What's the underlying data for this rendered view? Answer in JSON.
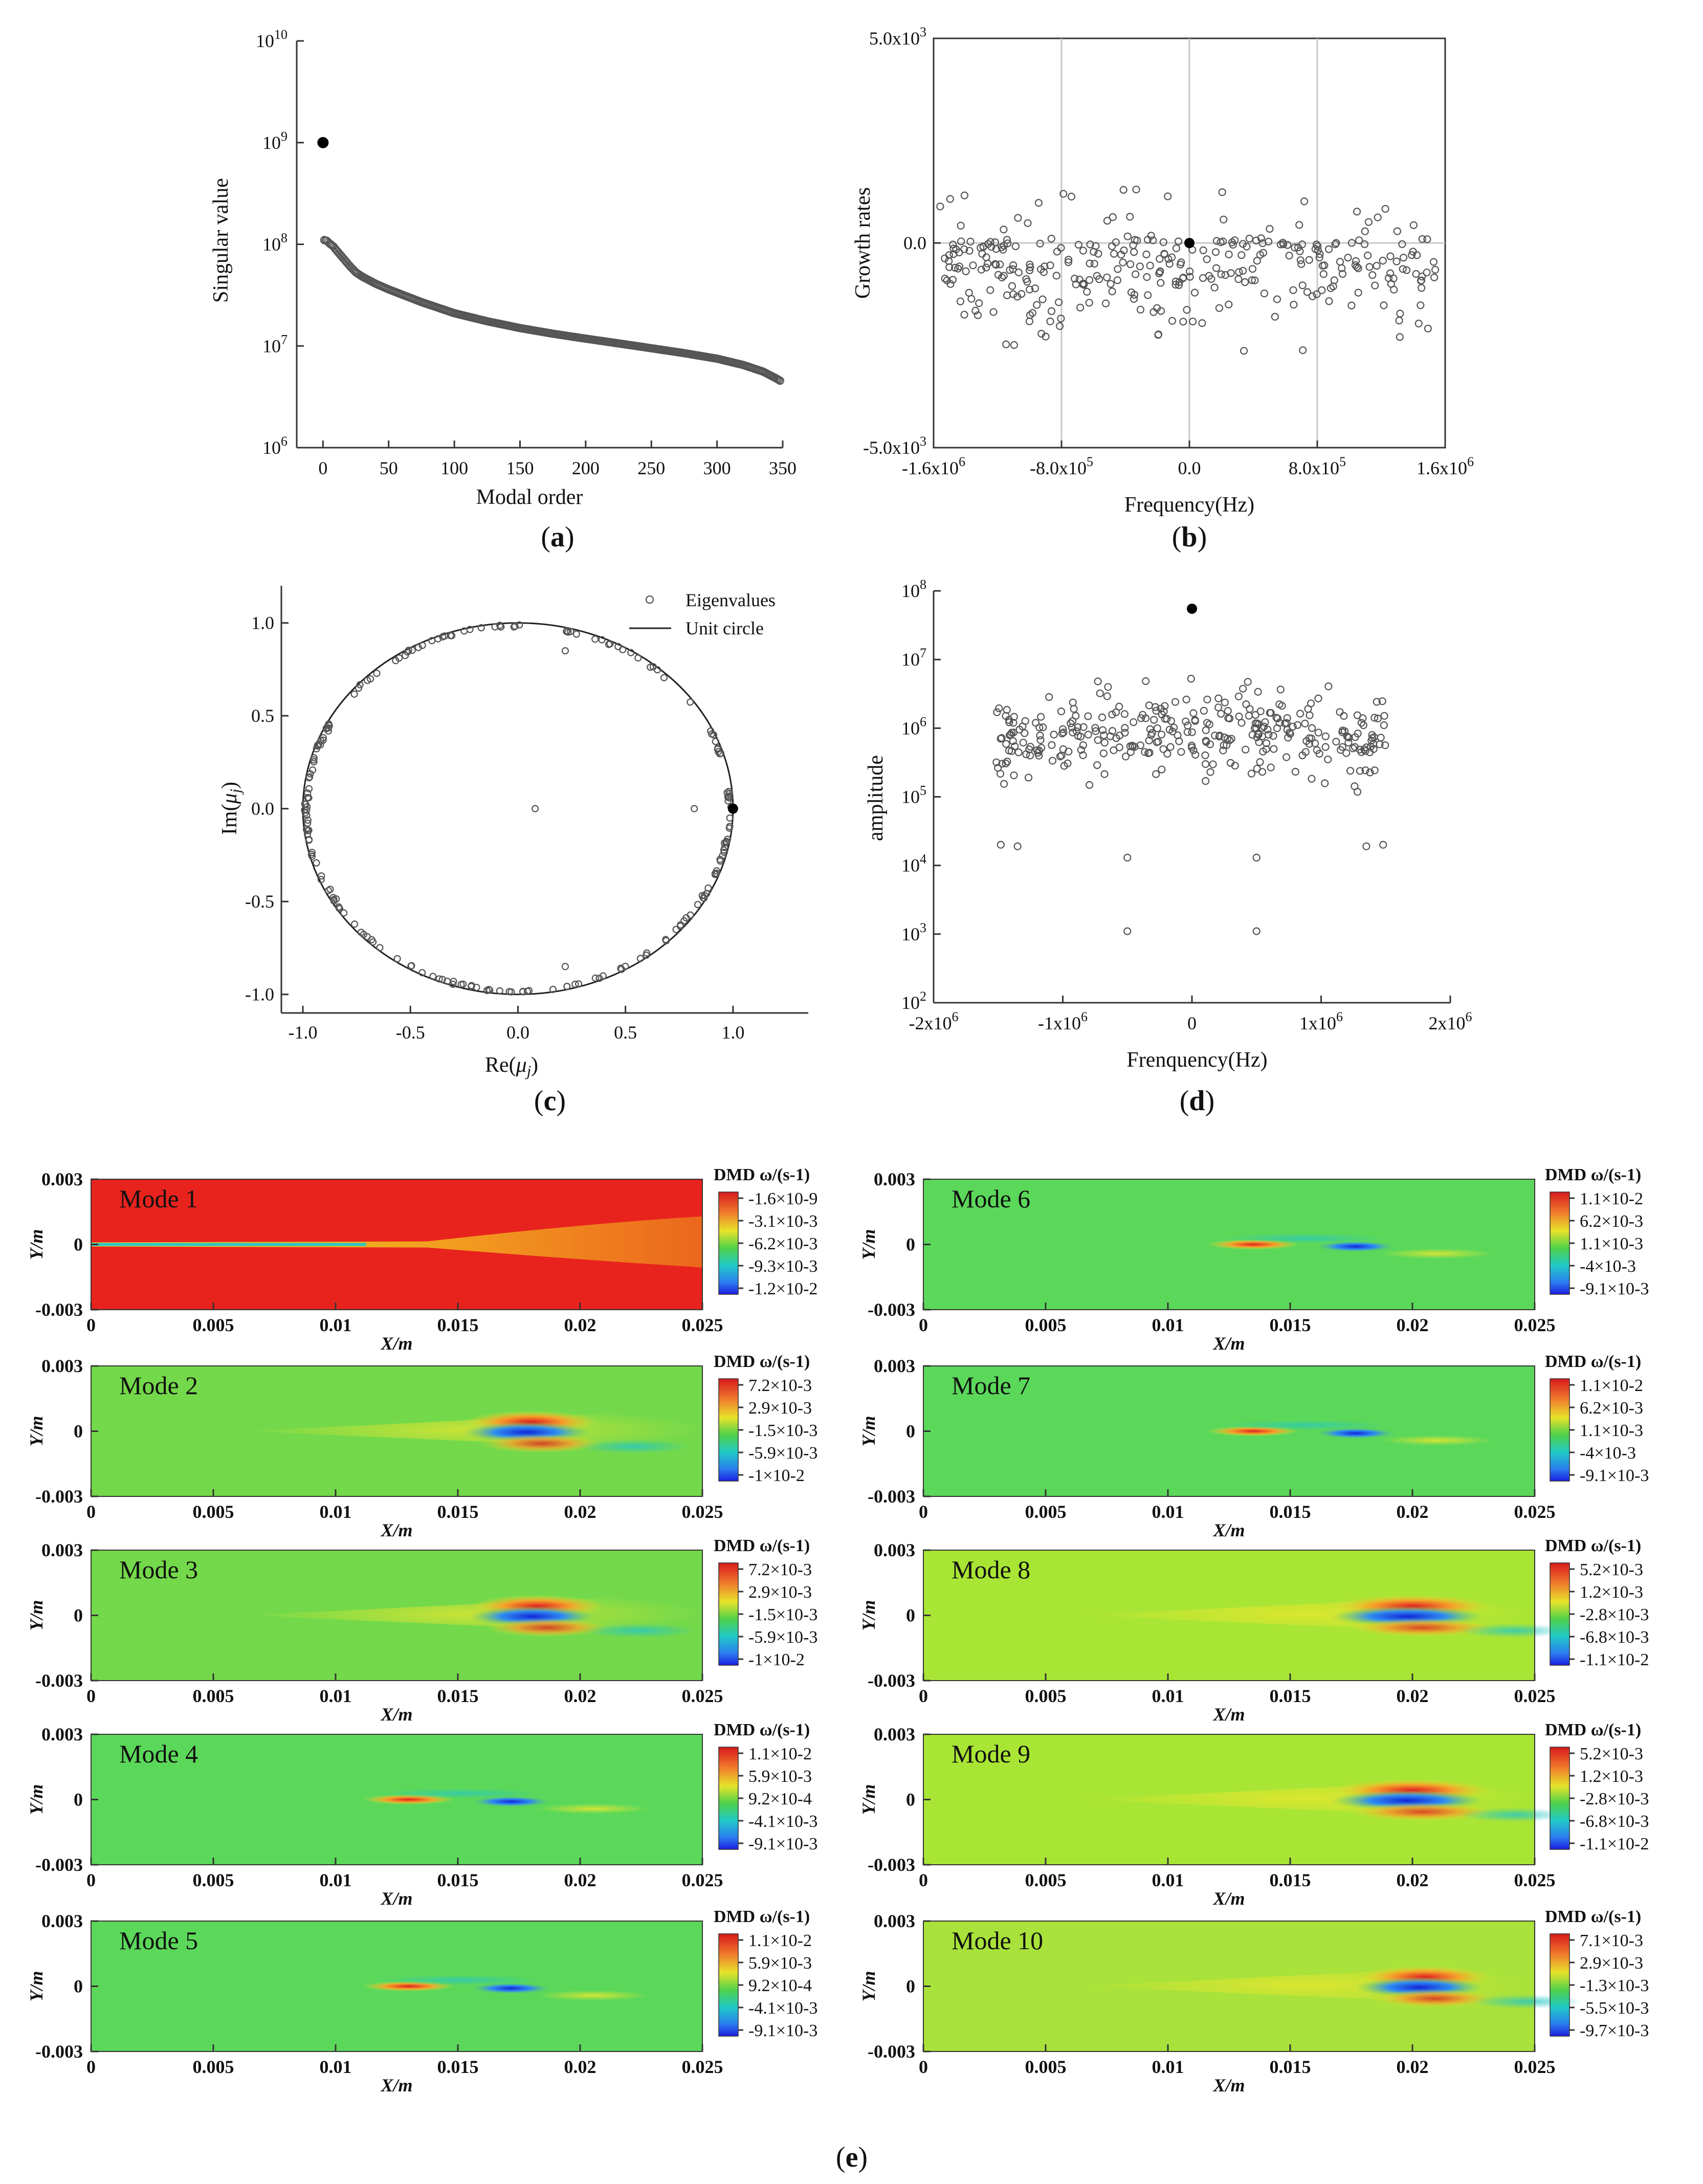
{
  "chart_data": [
    {
      "type": "scatter",
      "name": "a",
      "caption": "a",
      "xlabel": "Modal order",
      "ylabel": "Singular value",
      "xlim": [
        -20,
        350
      ],
      "ylim_log10": [
        6,
        10
      ],
      "x_ticks": [
        "0",
        "50",
        "100",
        "150",
        "200",
        "250",
        "300",
        "350"
      ],
      "y_ticks": [
        {
          "base": "10",
          "exp": "6"
        },
        {
          "base": "10",
          "exp": "7"
        },
        {
          "base": "10",
          "exp": "8"
        },
        {
          "base": "10",
          "exp": "9"
        },
        {
          "base": "10",
          "exp": "10"
        }
      ],
      "highlight": {
        "x": 0,
        "y": 1000000000
      },
      "series_points": [
        [
          1,
          110000000.0
        ],
        [
          3,
          108000000.0
        ],
        [
          5,
          102000000.0
        ],
        [
          8,
          95000000.0
        ],
        [
          10,
          88000000.0
        ],
        [
          15,
          74000000.0
        ],
        [
          20,
          62000000.0
        ],
        [
          25,
          53000000.0
        ],
        [
          30,
          48000000.0
        ],
        [
          40,
          41000000.0
        ],
        [
          50,
          36000000.0
        ],
        [
          75,
          27000000.0
        ],
        [
          100,
          21000000.0
        ],
        [
          125,
          17500000.0
        ],
        [
          150,
          15000000.0
        ],
        [
          175,
          13200000.0
        ],
        [
          200,
          11800000.0
        ],
        [
          225,
          10600000.0
        ],
        [
          250,
          9500000.0
        ],
        [
          275,
          8500000.0
        ],
        [
          300,
          7500000.0
        ],
        [
          320,
          6500000.0
        ],
        [
          335,
          5600000.0
        ],
        [
          345,
          4800000.0
        ],
        [
          350,
          4400000.0
        ]
      ]
    },
    {
      "type": "scatter",
      "name": "b",
      "caption": "b",
      "xlabel": "Frequency(Hz)",
      "ylabel": "Growth rates",
      "xlim": [
        -1600000,
        1600000
      ],
      "ylim": [
        -5000,
        5000
      ],
      "x_ticks": [
        {
          "mant": "-1.6x10",
          "exp": "6"
        },
        {
          "mant": "-8.0x10",
          "exp": "5"
        },
        {
          "mant": "0.0",
          "exp": ""
        },
        {
          "mant": "8.0x10",
          "exp": "5"
        },
        {
          "mant": "1.6x10",
          "exp": "6"
        }
      ],
      "y_ticks": [
        {
          "mant": "5.0x10",
          "exp": "3"
        },
        {
          "mant": "0.0",
          "exp": ""
        },
        {
          "mant": "-5.0x10",
          "exp": "3"
        }
      ],
      "highlight": {
        "x": 0,
        "y": 0
      },
      "n_points": 340
    },
    {
      "type": "scatter",
      "name": "c",
      "caption": "c",
      "xlabel": "Re(μj)",
      "ylabel": "Im(μj)",
      "xlim": [
        -1.1,
        1.35
      ],
      "ylim": [
        -1.1,
        1.2
      ],
      "x_ticks": [
        "-1.0",
        "-0.5",
        "0.0",
        "0.5",
        "1.0"
      ],
      "y_ticks": [
        "1.0",
        "0.5",
        "0.0",
        "-0.5",
        "-1.0"
      ],
      "legend": [
        "Eigenvalues",
        "Unit circle"
      ],
      "highlight": {
        "x": 1.0,
        "y": 0.0
      },
      "interior_points": [
        [
          0.08,
          0.0
        ],
        [
          0.82,
          0.0
        ],
        [
          0.22,
          0.85
        ],
        [
          0.22,
          -0.85
        ]
      ],
      "n_circle_points": 200
    },
    {
      "type": "scatter",
      "name": "d",
      "caption": "d",
      "xlabel": "Frenquency(Hz)",
      "ylabel": "amplitude",
      "xlim": [
        -2000000,
        2000000
      ],
      "ylim_log10": [
        2,
        8
      ],
      "x_ticks": [
        {
          "mant": "-2x10",
          "exp": "6"
        },
        {
          "mant": "-1x10",
          "exp": "6"
        },
        {
          "mant": "0",
          "exp": ""
        },
        {
          "mant": "1x10",
          "exp": "6"
        },
        {
          "mant": "2x10",
          "exp": "6"
        }
      ],
      "y_ticks": [
        {
          "base": "10",
          "exp": "2"
        },
        {
          "base": "10",
          "exp": "3"
        },
        {
          "base": "10",
          "exp": "4"
        },
        {
          "base": "10",
          "exp": "5"
        },
        {
          "base": "10",
          "exp": "6"
        },
        {
          "base": "10",
          "exp": "7"
        },
        {
          "base": "10",
          "exp": "8"
        }
      ],
      "highlight": {
        "x": 0,
        "y": 55000000
      },
      "extra_points": [
        [
          -1480000,
          20000
        ],
        [
          -1350000,
          19000
        ],
        [
          -500000,
          13000
        ],
        [
          500000,
          13000
        ],
        [
          -500000,
          1100
        ],
        [
          500000,
          1100
        ],
        [
          1350000,
          19000
        ],
        [
          1480000,
          20000
        ]
      ],
      "n_points": 330
    },
    {
      "type": "heatmap",
      "name": "e",
      "caption": "e",
      "xlabel": "X/m",
      "ylabel": "Y/m",
      "x_ticks": [
        "0",
        "0.005",
        "0.01",
        "0.015",
        "0.02",
        "0.025"
      ],
      "y_ticks": [
        "0.003",
        "0",
        "-0.003"
      ],
      "colorbar_title": "DMD ω/(s-1)",
      "modes": [
        {
          "label": "Mode 1",
          "levels": [
            "-1.6×10-9",
            "-3.1×10-3",
            "-6.2×10-3",
            "-9.3×10-3",
            "-1.2×10-2"
          ]
        },
        {
          "label": "Mode 2",
          "levels": [
            "7.2×10-3",
            "2.9×10-3",
            "-1.5×10-3",
            "-5.9×10-3",
            "-1×10-2"
          ]
        },
        {
          "label": "Mode 3",
          "levels": [
            "7.2×10-3",
            "2.9×10-3",
            "-1.5×10-3",
            "-5.9×10-3",
            "-1×10-2"
          ]
        },
        {
          "label": "Mode 4",
          "levels": [
            "1.1×10-2",
            "5.9×10-3",
            "9.2×10-4",
            "-4.1×10-3",
            "-9.1×10-3"
          ]
        },
        {
          "label": "Mode 5",
          "levels": [
            "1.1×10-2",
            "5.9×10-3",
            "9.2×10-4",
            "-4.1×10-3",
            "-9.1×10-3"
          ]
        },
        {
          "label": "Mode 6",
          "levels": [
            "1.1×10-2",
            "6.2×10-3",
            "1.1×10-3",
            "-4×10-3",
            "-9.1×10-3"
          ]
        },
        {
          "label": "Mode 7",
          "levels": [
            "1.1×10-2",
            "6.2×10-3",
            "1.1×10-3",
            "-4×10-3",
            "-9.1×10-3"
          ]
        },
        {
          "label": "Mode 8",
          "levels": [
            "5.2×10-3",
            "1.2×10-3",
            "-2.8×10-3",
            "-6.8×10-3",
            "-1.1×10-2"
          ]
        },
        {
          "label": "Mode 9",
          "levels": [
            "5.2×10-3",
            "1.2×10-3",
            "-2.8×10-3",
            "-6.8×10-3",
            "-1.1×10-2"
          ]
        },
        {
          "label": "Mode 10",
          "levels": [
            "7.1×10-3",
            "2.9×10-3",
            "-1.3×10-3",
            "-5.5×10-3",
            "-9.7×10-3"
          ]
        }
      ]
    }
  ]
}
